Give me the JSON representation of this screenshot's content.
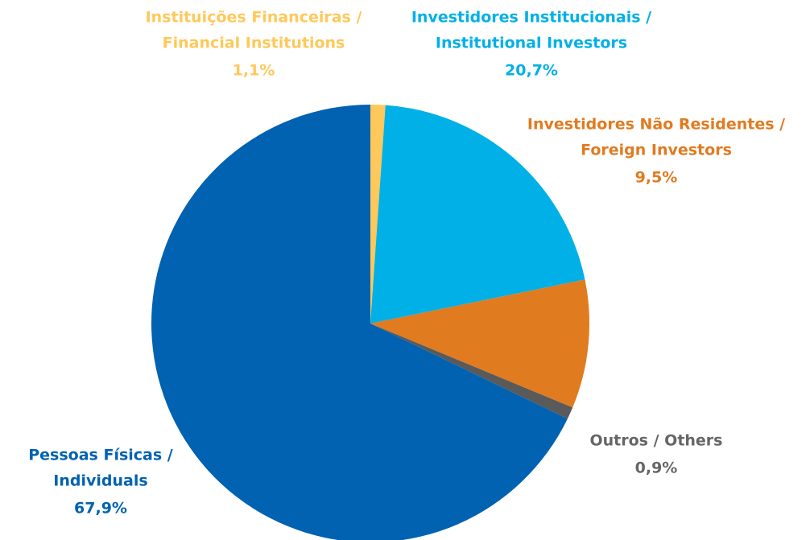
{
  "chart_data": {
    "type": "pie",
    "categories": [
      [
        "Instituições Financeiras /",
        "Financial Institutions"
      ],
      [
        "Investidores Institucionais /",
        "Institutional Investors"
      ],
      [
        "Investidores Não Residentes /",
        "Foreign Investors"
      ],
      [
        "Outros / Others"
      ],
      [
        "Pessoas Físicas /",
        "Individuals"
      ]
    ],
    "values": [
      1.1,
      20.7,
      9.5,
      0.9,
      67.9
    ],
    "value_labels": [
      "1,1%",
      "20,7%",
      "9,5%",
      "0,9%",
      "67,9%"
    ],
    "colors": [
      "#ffc85a",
      "#00b0e6",
      "#e07b20",
      "#5a5a5a",
      "#0062b0"
    ],
    "label_colors": [
      "#ffc85a",
      "#00b0e6",
      "#e07b20",
      "#666666",
      "#0062b0"
    ]
  }
}
